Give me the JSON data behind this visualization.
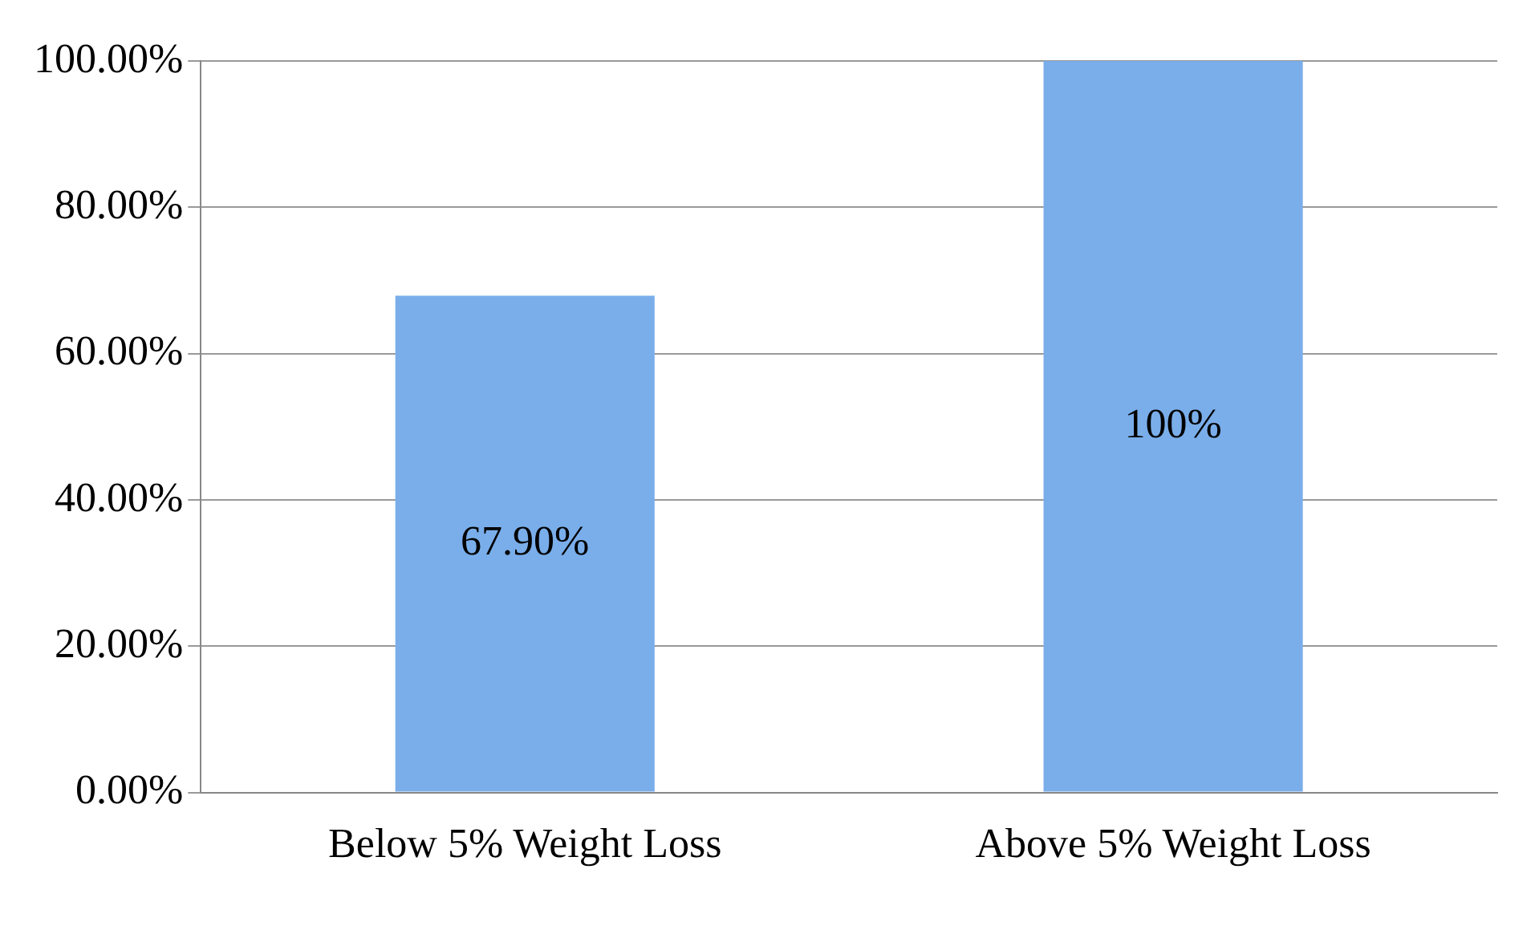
{
  "chart_data": {
    "type": "bar",
    "categories": [
      "Below 5% Weight Loss",
      "Above 5% Weight Loss"
    ],
    "values": [
      67.9,
      100
    ],
    "color": "#7aaeea",
    "value_labels": [
      "67.90%",
      "100%"
    ],
    "ylim": [
      0,
      100
    ],
    "yticks": [
      {
        "value": 0,
        "label": "0.00%"
      },
      {
        "value": 20,
        "label": "20.00%"
      },
      {
        "value": 40,
        "label": "40.00%"
      },
      {
        "value": 60,
        "label": "60.00%"
      },
      {
        "value": 80,
        "label": "80.00%"
      },
      {
        "value": 100,
        "label": "100.00%"
      }
    ],
    "grid": "y",
    "legend": false
  }
}
